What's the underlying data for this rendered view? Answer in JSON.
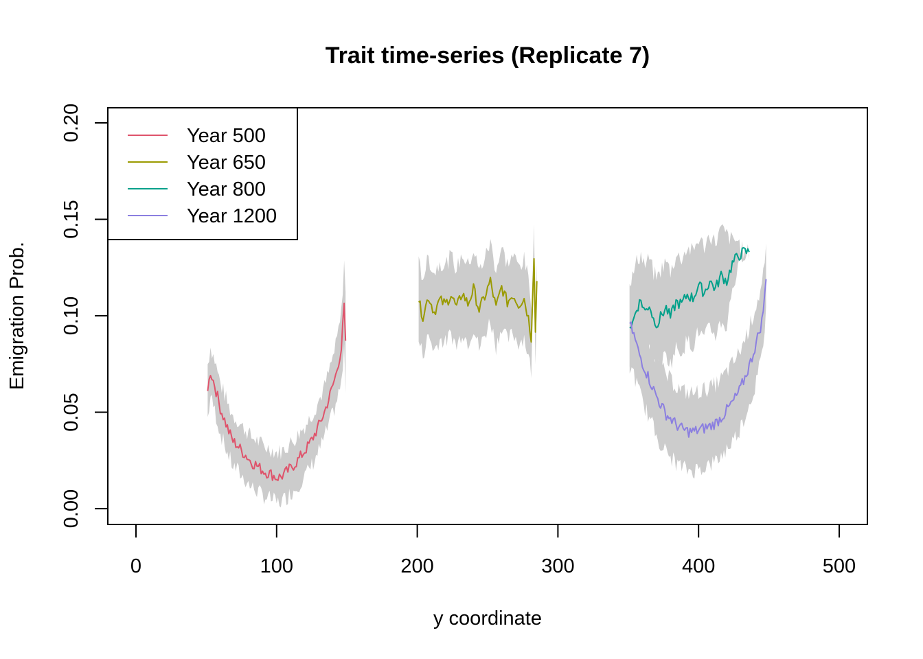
{
  "chart_data": {
    "type": "line",
    "title": "Trait time-series (Replicate 7)",
    "xlabel": "y coordinate",
    "ylabel": "Emigration Prob.",
    "xlim": [
      0,
      500
    ],
    "ylim": [
      0,
      0.2
    ],
    "xticks": [
      "0",
      "100",
      "200",
      "300",
      "400",
      "500"
    ],
    "yticks": [
      "0.00",
      "0.05",
      "0.10",
      "0.15",
      "0.20"
    ],
    "xtick_values": [
      0,
      100,
      200,
      300,
      400,
      500
    ],
    "ytick_values": [
      0,
      0.05,
      0.1,
      0.15,
      0.2
    ],
    "legend_position": "top-left",
    "band_color": "#cccccc",
    "series": [
      {
        "name": "Year 500",
        "color": "#df536b",
        "x": [
          51,
          53,
          56,
          60,
          63,
          66,
          69,
          72,
          75,
          79,
          82,
          85,
          88,
          92,
          96,
          100,
          104,
          107,
          110,
          114,
          118,
          122,
          126,
          130,
          134,
          138,
          142,
          146,
          148,
          149
        ],
        "y": [
          0.061,
          0.071,
          0.064,
          0.052,
          0.046,
          0.04,
          0.035,
          0.033,
          0.03,
          0.027,
          0.024,
          0.023,
          0.021,
          0.019,
          0.018,
          0.016,
          0.017,
          0.019,
          0.021,
          0.024,
          0.028,
          0.032,
          0.037,
          0.043,
          0.05,
          0.059,
          0.069,
          0.083,
          0.105,
          0.087
        ],
        "band_halfwidth": [
          0.014,
          0.013,
          0.013,
          0.013,
          0.013,
          0.013,
          0.013,
          0.013,
          0.013,
          0.013,
          0.013,
          0.013,
          0.013,
          0.013,
          0.013,
          0.013,
          0.013,
          0.013,
          0.013,
          0.013,
          0.013,
          0.013,
          0.013,
          0.013,
          0.013,
          0.014,
          0.015,
          0.018,
          0.024,
          0.024
        ]
      },
      {
        "name": "Year 650",
        "color": "#9a9a00",
        "x": [
          201,
          204,
          208,
          212,
          216,
          220,
          224,
          228,
          232,
          236,
          240,
          244,
          248,
          252,
          256,
          260,
          264,
          268,
          272,
          276,
          279,
          281,
          283,
          284,
          285
        ],
        "y": [
          0.107,
          0.1,
          0.11,
          0.102,
          0.108,
          0.106,
          0.111,
          0.104,
          0.112,
          0.106,
          0.114,
          0.103,
          0.11,
          0.118,
          0.104,
          0.115,
          0.107,
          0.111,
          0.106,
          0.109,
          0.099,
          0.089,
          0.132,
          0.091,
          0.118
        ],
        "band_halfwidth": [
          0.02,
          0.02,
          0.02,
          0.02,
          0.02,
          0.02,
          0.02,
          0.02,
          0.02,
          0.02,
          0.02,
          0.02,
          0.02,
          0.02,
          0.02,
          0.02,
          0.02,
          0.02,
          0.02,
          0.02,
          0.02,
          0.018,
          0.012,
          0.012,
          0.012
        ]
      },
      {
        "name": "Year 800",
        "color": "#00a08a",
        "x": [
          351,
          353,
          356,
          359,
          362,
          365,
          368,
          371,
          374,
          377,
          380,
          384,
          388,
          392,
          396,
          400,
          404,
          408,
          412,
          416,
          420,
          424,
          428,
          432,
          436
        ],
        "y": [
          0.094,
          0.096,
          0.104,
          0.108,
          0.102,
          0.106,
          0.098,
          0.096,
          0.101,
          0.104,
          0.099,
          0.107,
          0.106,
          0.111,
          0.109,
          0.116,
          0.112,
          0.118,
          0.114,
          0.121,
          0.118,
          0.127,
          0.131,
          0.133,
          0.133
        ],
        "band_halfwidth": [
          0.024,
          0.024,
          0.024,
          0.024,
          0.024,
          0.024,
          0.024,
          0.024,
          0.024,
          0.024,
          0.024,
          0.024,
          0.024,
          0.024,
          0.024,
          0.024,
          0.024,
          0.024,
          0.024,
          0.024,
          0.024,
          0.012,
          0.008,
          0.0,
          0.0
        ]
      },
      {
        "name": "Year 1200",
        "color": "#8b7fe0",
        "x": [
          351,
          354,
          357,
          361,
          365,
          369,
          373,
          377,
          381,
          385,
          389,
          393,
          397,
          401,
          405,
          409,
          413,
          417,
          421,
          425,
          429,
          433,
          437,
          441,
          445,
          447,
          448
        ],
        "y": [
          0.096,
          0.09,
          0.082,
          0.074,
          0.067,
          0.06,
          0.054,
          0.049,
          0.046,
          0.043,
          0.041,
          0.04,
          0.04,
          0.041,
          0.042,
          0.043,
          0.045,
          0.048,
          0.052,
          0.056,
          0.061,
          0.068,
          0.076,
          0.086,
          0.097,
          0.11,
          0.119
        ],
        "band_halfwidth": [
          0.02,
          0.02,
          0.02,
          0.02,
          0.02,
          0.02,
          0.02,
          0.02,
          0.02,
          0.02,
          0.02,
          0.02,
          0.02,
          0.02,
          0.02,
          0.02,
          0.02,
          0.02,
          0.02,
          0.02,
          0.02,
          0.02,
          0.02,
          0.02,
          0.018,
          0.016,
          0.014
        ]
      }
    ]
  }
}
